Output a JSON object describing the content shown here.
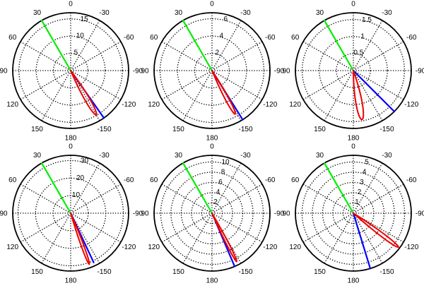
{
  "chart_data": [
    {
      "type": "polar",
      "angle_ticks": [
        "0",
        "30",
        "60",
        "90",
        "120",
        "150",
        "180",
        "-150",
        "-120",
        "-90",
        "-60",
        "-30"
      ],
      "r_max": 16.8,
      "r_ticks": [
        {
          "value": 5,
          "label": "5"
        },
        {
          "value": 10,
          "label": "10"
        },
        {
          "value": 15,
          "label": "15"
        }
      ],
      "series": [
        {
          "color": "#00ee00",
          "shape": "ray",
          "angle_deg": 30,
          "r_end": 16.8
        },
        {
          "color": "#0000ff",
          "shape": "ray",
          "angle_deg": -145,
          "r_end": 16.8
        },
        {
          "color": "#ee0000",
          "shape": "lobe",
          "angle_deg": -150,
          "r_len": 14.8,
          "r_width": 1.5
        }
      ]
    },
    {
      "type": "polar",
      "angle_ticks": [
        "0",
        "30",
        "60",
        "90",
        "120",
        "150",
        "180",
        "-150",
        "-120",
        "-90",
        "-60",
        "-30"
      ],
      "r_max": 6.7,
      "r_ticks": [
        {
          "value": 2,
          "label": "2"
        },
        {
          "value": 4,
          "label": "4"
        },
        {
          "value": 6,
          "label": "6"
        }
      ],
      "series": [
        {
          "color": "#00ee00",
          "shape": "ray",
          "angle_deg": 30,
          "r_end": 6.7
        },
        {
          "color": "#0000ff",
          "shape": "ray",
          "angle_deg": -148,
          "r_end": 6.7
        },
        {
          "color": "#ee0000",
          "shape": "lobe",
          "angle_deg": -152,
          "r_len": 5.7,
          "r_width": 0.45
        }
      ]
    },
    {
      "type": "polar",
      "angle_ticks": [
        "0",
        "30",
        "60",
        "90",
        "120",
        "150",
        "180",
        "-150",
        "-120",
        "-90",
        "-60",
        "-30"
      ],
      "r_max": 1.7,
      "r_ticks": [
        {
          "value": 0.5,
          "label": "0.5"
        },
        {
          "value": 1,
          "label": "1"
        },
        {
          "value": 1.5,
          "label": "1.5"
        }
      ],
      "series": [
        {
          "color": "#00ee00",
          "shape": "ray",
          "angle_deg": 30,
          "r_end": 1.7
        },
        {
          "color": "#0000ff",
          "shape": "ray",
          "angle_deg": -135,
          "r_end": 1.7
        },
        {
          "color": "#ee0000",
          "shape": "lobe",
          "angle_deg": -170,
          "r_len": 1.46,
          "r_width": 0.2
        }
      ]
    },
    {
      "type": "polar",
      "angle_ticks": [
        "0",
        "30",
        "60",
        "90",
        "120",
        "150",
        "180",
        "-150",
        "-120",
        "-90",
        "-60",
        "-30"
      ],
      "r_max": 33,
      "r_ticks": [
        {
          "value": 10,
          "label": "10"
        },
        {
          "value": 20,
          "label": "20"
        },
        {
          "value": 30,
          "label": "30"
        }
      ],
      "series": [
        {
          "color": "#00ee00",
          "shape": "ray",
          "angle_deg": 30,
          "r_end": 33
        },
        {
          "color": "#0000ff",
          "shape": "ray",
          "angle_deg": -155,
          "r_end": 31
        },
        {
          "color": "#ee0000",
          "shape": "lobe",
          "angle_deg": -160,
          "r_len": 31,
          "r_width": 1.6
        }
      ]
    },
    {
      "type": "polar",
      "angle_ticks": [
        "0",
        "30",
        "60",
        "90",
        "120",
        "150",
        "180",
        "-150",
        "-120",
        "-90",
        "-60",
        "-30"
      ],
      "r_max": 11.3,
      "r_ticks": [
        {
          "value": 2,
          "label": "2"
        },
        {
          "value": 4,
          "label": "4"
        },
        {
          "value": 6,
          "label": "6"
        },
        {
          "value": 8,
          "label": "8"
        },
        {
          "value": 10,
          "label": "10"
        }
      ],
      "series": [
        {
          "color": "#00ee00",
          "shape": "ray",
          "angle_deg": 30,
          "r_end": 11.3
        },
        {
          "color": "#0000ff",
          "shape": "ray",
          "angle_deg": -157,
          "r_end": 11.3
        },
        {
          "color": "#ee0000",
          "shape": "lobe",
          "angle_deg": -153,
          "r_len": 10.6,
          "r_width": 0.5
        }
      ]
    },
    {
      "type": "polar",
      "angle_ticks": [
        "0",
        "30",
        "60",
        "90",
        "120",
        "150",
        "180",
        "-150",
        "-120",
        "-90",
        "-60",
        "-30"
      ],
      "r_max": 5.65,
      "r_ticks": [
        {
          "value": 1,
          "label": "1"
        },
        {
          "value": 2,
          "label": "2"
        },
        {
          "value": 3,
          "label": "3"
        },
        {
          "value": 4,
          "label": "4"
        },
        {
          "value": 5,
          "label": "5"
        }
      ],
      "series": [
        {
          "color": "#00ee00",
          "shape": "ray",
          "angle_deg": 30,
          "r_end": 5.65
        },
        {
          "color": "#0000ff",
          "shape": "ray",
          "angle_deg": -163,
          "r_end": 5.65
        },
        {
          "color": "#ee0000",
          "shape": "lobe",
          "angle_deg": -127,
          "r_len": 5.5,
          "r_width": 0.38
        }
      ]
    }
  ]
}
